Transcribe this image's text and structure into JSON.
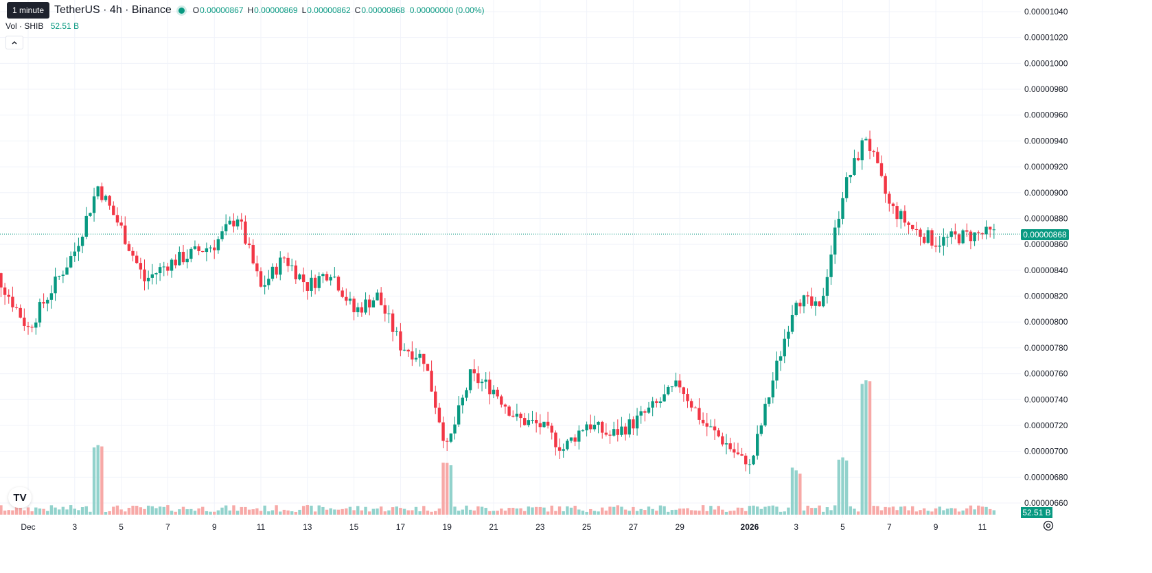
{
  "tooltip": "1 minute",
  "symbol": {
    "title": "TetherUS · 4h · Binance"
  },
  "ohlc": {
    "o_label": "O",
    "o_value": "0.00000867",
    "h_label": "H",
    "h_value": "0.00000869",
    "l_label": "L",
    "l_value": "0.00000862",
    "c_label": "C",
    "c_value": "0.00000868",
    "change": "0.00000000 (0.00%)"
  },
  "volume": {
    "label": "Vol · SHIB",
    "value": "52.51 B"
  },
  "badges": {
    "last_price": "0.00000868",
    "last_volume": "52.51 B"
  },
  "logo_text": "TV",
  "icons": {
    "collapse": "chevron-up-icon",
    "settings": "gear-icon",
    "logo": "tradingview-logo-icon"
  },
  "colors": {
    "up": "#089981",
    "down": "#f23645",
    "up_volume": "#92d2cc",
    "down_volume": "#f7a9a7",
    "grid": "#f0f3fa",
    "last_price_line": "#089981"
  },
  "chart_data": {
    "type": "candlestick",
    "interval": "4h",
    "y_axis": {
      "ticks": [
        "0.00001040",
        "0.00001020",
        "0.00001000",
        "0.00000980",
        "0.00000960",
        "0.00000940",
        "0.00000920",
        "0.00000900",
        "0.00000880",
        "0.00000860",
        "0.00000840",
        "0.00000820",
        "0.00000800",
        "0.00000780",
        "0.00000760",
        "0.00000740",
        "0.00000720",
        "0.00000700",
        "0.00000680",
        "0.00000660"
      ],
      "range": [
        6.6e-06,
        1.04e-05
      ]
    },
    "x_axis": {
      "ticks": [
        "Dec",
        "3",
        "5",
        "7",
        "9",
        "11",
        "13",
        "15",
        "17",
        "19",
        "21",
        "23",
        "25",
        "27",
        "29",
        "2026",
        "3",
        "5",
        "7",
        "9",
        "11"
      ],
      "bold_ticks": [
        "2026"
      ]
    },
    "last_price": 8.68e-06,
    "keypoints": [
      {
        "date": "Nov 29",
        "price": 8.56e-06
      },
      {
        "date": "Dec 1",
        "price": 7.95e-06
      },
      {
        "date": "Dec 3",
        "price": 8.55e-06
      },
      {
        "date": "Dec 4",
        "price": 9.05e-06
      },
      {
        "date": "Dec 5",
        "price": 8.72e-06
      },
      {
        "date": "Dec 6",
        "price": 8.32e-06
      },
      {
        "date": "Dec 7",
        "price": 8.45e-06
      },
      {
        "date": "Dec 9",
        "price": 8.6e-06
      },
      {
        "date": "Dec 10",
        "price": 8.82e-06
      },
      {
        "date": "Dec 11",
        "price": 8.26e-06
      },
      {
        "date": "Dec 12",
        "price": 8.5e-06
      },
      {
        "date": "Dec 13",
        "price": 8.28e-06
      },
      {
        "date": "Dec 14",
        "price": 8.4e-06
      },
      {
        "date": "Dec 15",
        "price": 8.08e-06
      },
      {
        "date": "Dec 16",
        "price": 8.2e-06
      },
      {
        "date": "Dec 17",
        "price": 7.82e-06
      },
      {
        "date": "Dec 18",
        "price": 7.72e-06
      },
      {
        "date": "Dec 19",
        "price": 7.02e-06
      },
      {
        "date": "Dec 20",
        "price": 7.58e-06
      },
      {
        "date": "Dec 21",
        "price": 7.48e-06
      },
      {
        "date": "Dec 22",
        "price": 7.25e-06
      },
      {
        "date": "Dec 23",
        "price": 7.2e-06
      },
      {
        "date": "Dec 24",
        "price": 7.02e-06
      },
      {
        "date": "Dec 25",
        "price": 7.22e-06
      },
      {
        "date": "Dec 26",
        "price": 7.12e-06
      },
      {
        "date": "Dec 27",
        "price": 7.22e-06
      },
      {
        "date": "Dec 28",
        "price": 7.36e-06
      },
      {
        "date": "Dec 29",
        "price": 7.52e-06
      },
      {
        "date": "Dec 30",
        "price": 7.22e-06
      },
      {
        "date": "Dec 31",
        "price": 7.06e-06
      },
      {
        "date": "Jan 1",
        "price": 6.86e-06
      },
      {
        "date": "Jan 2",
        "price": 7.55e-06
      },
      {
        "date": "Jan 3",
        "price": 8.2e-06
      },
      {
        "date": "Jan 4",
        "price": 8.08e-06
      },
      {
        "date": "Jan 5",
        "price": 9e-06
      },
      {
        "date": "Jan 6",
        "price": 9.44e-06
      },
      {
        "date": "Jan 7",
        "price": 8.9e-06
      },
      {
        "date": "Jan 8",
        "price": 8.72e-06
      },
      {
        "date": "Jan 9",
        "price": 8.62e-06
      },
      {
        "date": "Jan 10",
        "price": 8.66e-06
      },
      {
        "date": "Jan 11",
        "price": 8.68e-06
      }
    ],
    "volume_peaks": [
      {
        "date": "Dec 4",
        "relative": 0.5
      },
      {
        "date": "Dec 19",
        "relative": 0.35
      },
      {
        "date": "Jan 3",
        "relative": 0.3
      },
      {
        "date": "Jan 5",
        "relative": 0.4
      },
      {
        "date": "Jan 6",
        "relative": 1.0
      }
    ]
  }
}
